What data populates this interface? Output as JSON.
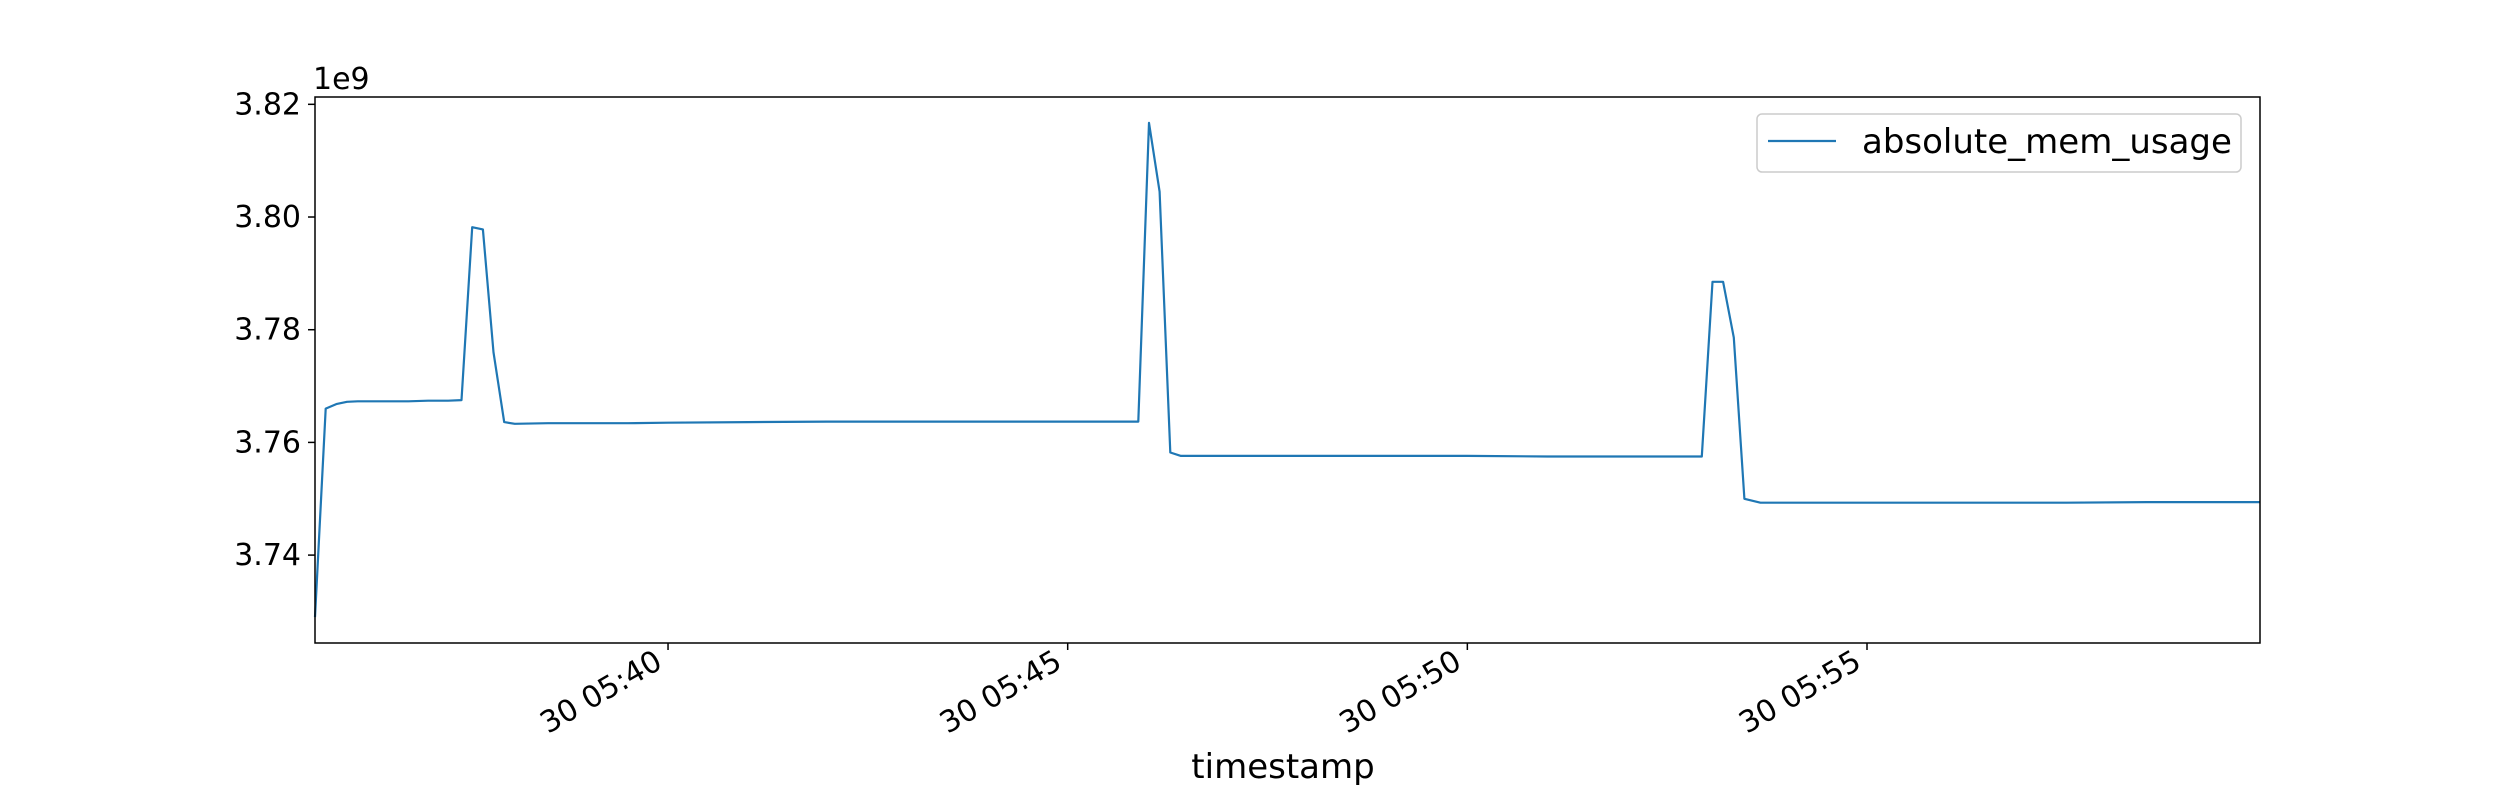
{
  "chart_data": {
    "type": "line",
    "title": "",
    "xlabel": "timestamp",
    "ylabel": "",
    "y_offset_text": "1e9",
    "y_tick_labels": [
      "3.74",
      "3.76",
      "3.78",
      "3.80",
      "3.82"
    ],
    "y_ticks": [
      3.74,
      3.76,
      3.78,
      3.8,
      3.82
    ],
    "x_tick_labels": [
      "30 05:40",
      "30 05:45",
      "30 05:50",
      "30 05:55"
    ],
    "x_ticks": [
      "05:40:00",
      "05:45:00",
      "05:50:00",
      "05:55:00"
    ],
    "xlim": [
      "05:35:35",
      "05:59:55"
    ],
    "ylim": [
      3.7244,
      3.8213
    ],
    "grid": false,
    "legend_placement": "top-right",
    "series": [
      {
        "name": "absolute_mem_usage",
        "color": "#1f77b4",
        "x": [
          "05:35:35",
          "05:35:43",
          "05:35:51",
          "05:35:59",
          "05:36:07",
          "05:36:15",
          "05:36:30",
          "05:36:45",
          "05:37:00",
          "05:37:15",
          "05:37:25",
          "05:37:33",
          "05:37:41",
          "05:37:49",
          "05:37:57",
          "05:38:05",
          "05:38:30",
          "05:39:00",
          "05:39:30",
          "05:40:00",
          "05:41:00",
          "05:42:00",
          "05:43:00",
          "05:44:00",
          "05:45:00",
          "05:45:40",
          "05:45:53",
          "05:46:01",
          "05:46:09",
          "05:46:17",
          "05:46:25",
          "05:47:00",
          "05:48:00",
          "05:49:00",
          "05:50:00",
          "05:51:00",
          "05:52:00",
          "05:52:56",
          "05:53:04",
          "05:53:12",
          "05:53:20",
          "05:53:28",
          "05:53:40",
          "05:54:30",
          "05:55:30",
          "05:56:30",
          "05:57:30",
          "05:58:30",
          "05:59:55"
        ],
        "y": [
          3.729,
          3.766,
          3.7668,
          3.7672,
          3.7673,
          3.7673,
          3.7673,
          3.7673,
          3.7674,
          3.7674,
          3.7675,
          3.7982,
          3.7978,
          3.776,
          3.7636,
          3.7633,
          3.7634,
          3.7634,
          3.7634,
          3.7635,
          3.7636,
          3.7637,
          3.7637,
          3.7637,
          3.7637,
          3.7637,
          3.7637,
          3.8167,
          3.8045,
          3.7582,
          3.7576,
          3.7576,
          3.7576,
          3.7576,
          3.7576,
          3.7575,
          3.7575,
          3.7575,
          3.7885,
          3.7885,
          3.7786,
          3.75,
          3.7493,
          3.7493,
          3.7493,
          3.7493,
          3.7493,
          3.7494,
          3.7494
        ]
      }
    ]
  }
}
